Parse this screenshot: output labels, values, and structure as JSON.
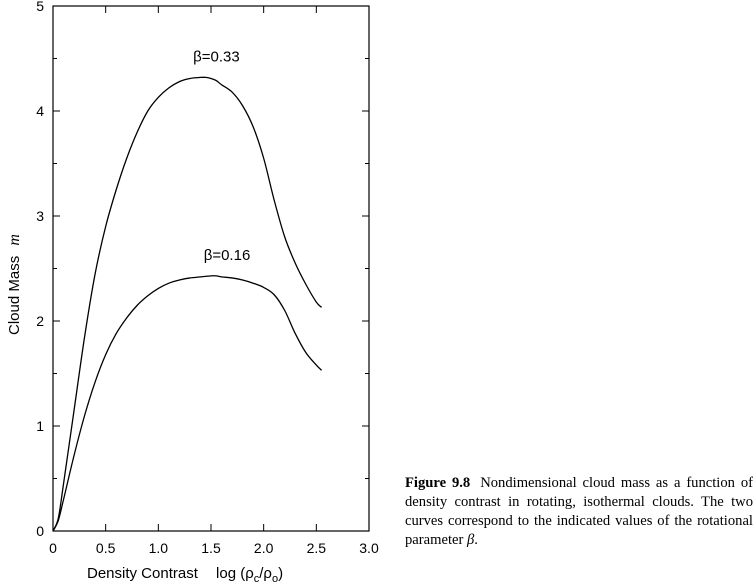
{
  "chart_data": {
    "type": "line",
    "xlabel": "Density  Contrast",
    "xlabel_expr": "log (ρ",
    "xlabel_sub1": "c",
    "xlabel_mid": "/ρ",
    "xlabel_sub2": "o",
    "xlabel_end": ")",
    "ylabel": "Cloud  Mass",
    "ylabel_var": "m",
    "xlim": [
      0,
      3.0
    ],
    "ylim": [
      0,
      5
    ],
    "xticks": [
      "0",
      "0.5",
      "1.0",
      "1.5",
      "2.0",
      "2.5",
      "3.0"
    ],
    "yticks": [
      "0",
      "1",
      "2",
      "3",
      "4",
      "5"
    ],
    "series": [
      {
        "name": "β=0.33",
        "x": [
          0.0,
          0.05,
          0.1,
          0.2,
          0.3,
          0.4,
          0.5,
          0.6,
          0.7,
          0.8,
          0.9,
          1.0,
          1.1,
          1.2,
          1.3,
          1.4,
          1.45,
          1.5,
          1.55,
          1.6,
          1.7,
          1.8,
          1.9,
          2.0,
          2.1,
          2.2,
          2.3,
          2.4,
          2.5,
          2.55
        ],
        "y": [
          0.0,
          0.12,
          0.45,
          1.15,
          1.85,
          2.45,
          2.9,
          3.25,
          3.55,
          3.8,
          4.0,
          4.13,
          4.22,
          4.28,
          4.31,
          4.32,
          4.32,
          4.31,
          4.29,
          4.25,
          4.18,
          4.05,
          3.85,
          3.55,
          3.15,
          2.8,
          2.55,
          2.35,
          2.18,
          2.13
        ]
      },
      {
        "name": "β=0.16",
        "x": [
          0.0,
          0.05,
          0.1,
          0.2,
          0.3,
          0.4,
          0.5,
          0.6,
          0.7,
          0.8,
          0.9,
          1.0,
          1.1,
          1.2,
          1.3,
          1.4,
          1.5,
          1.55,
          1.6,
          1.7,
          1.8,
          1.9,
          2.0,
          2.1,
          2.2,
          2.3,
          2.4,
          2.5,
          2.55
        ],
        "y": [
          0.0,
          0.1,
          0.3,
          0.72,
          1.1,
          1.42,
          1.68,
          1.88,
          2.03,
          2.15,
          2.24,
          2.31,
          2.36,
          2.39,
          2.41,
          2.42,
          2.43,
          2.43,
          2.42,
          2.41,
          2.39,
          2.36,
          2.32,
          2.25,
          2.1,
          1.88,
          1.7,
          1.58,
          1.53
        ]
      }
    ]
  },
  "caption": {
    "label": "Figure 9.8",
    "text": "Nondimensional cloud mass as a function of density contrast in rotating, isothermal clouds.  The two curves correspond to the indicated values of the rotational parameter",
    "beta": "β",
    "end": "."
  }
}
